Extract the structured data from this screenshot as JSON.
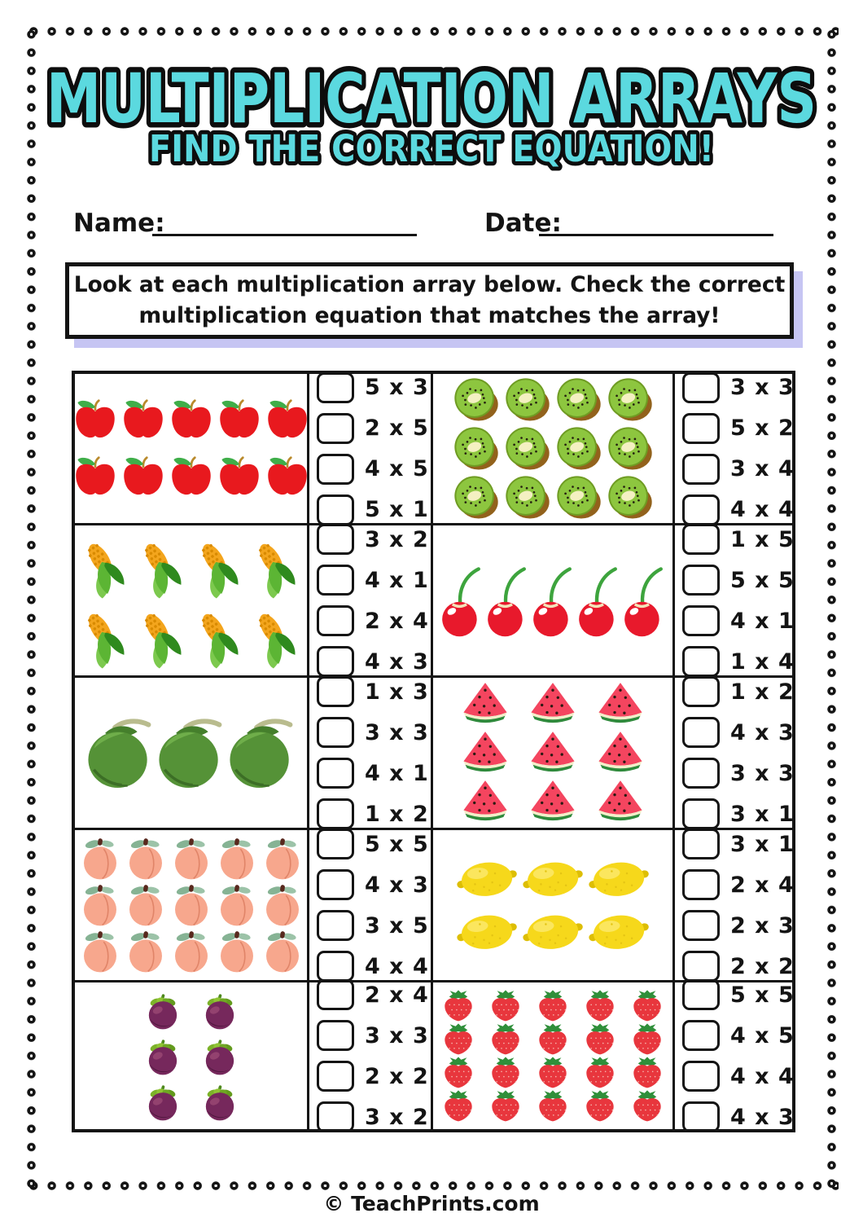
{
  "page": {
    "title": "MULTIPLICATION ARRAYS",
    "subtitle": "FIND THE CORRECT EQUATION!",
    "name_label": "Name:",
    "date_label": "Date:",
    "instructions": {
      "line1": "Look at each multiplication array below. Check the correct",
      "line2": "multiplication equation that matches the array!"
    },
    "footer": "© TeachPrints.com",
    "colors": {
      "title_fill": "#5bd9df",
      "outline": "#0d0d0d",
      "instruction_shadow": "#c6c5f3",
      "table_border": "#141414"
    }
  },
  "problems": [
    {
      "fruit": "apple",
      "rows": 2,
      "cols": 5,
      "options": [
        "5 x 3",
        "2 x 5",
        "4 x 5",
        "5 x 1"
      ]
    },
    {
      "fruit": "kiwi",
      "rows": 3,
      "cols": 4,
      "options": [
        "3 x 3",
        "5 x 2",
        "3 x 4",
        "4 x 4"
      ]
    },
    {
      "fruit": "corn",
      "rows": 2,
      "cols": 4,
      "options": [
        "3 x 2",
        "4 x 1",
        "2 x 4",
        "4 x 3"
      ]
    },
    {
      "fruit": "cherry",
      "rows": 1,
      "cols": 5,
      "options": [
        "1 x 5",
        "5 x 5",
        "4 x 1",
        "1 x 4"
      ]
    },
    {
      "fruit": "coconut",
      "rows": 1,
      "cols": 3,
      "options": [
        "1 x 3",
        "3 x 3",
        "4 x 1",
        "1 x 2"
      ]
    },
    {
      "fruit": "watermelon",
      "rows": 3,
      "cols": 3,
      "options": [
        "1 x 2",
        "4 x 3",
        "3 x 3",
        "3 x 1"
      ]
    },
    {
      "fruit": "peach",
      "rows": 3,
      "cols": 5,
      "options": [
        "5 x 5",
        "4 x 3",
        "3 x 5",
        "4 x 4"
      ]
    },
    {
      "fruit": "lemon",
      "rows": 2,
      "cols": 3,
      "options": [
        "3 x 1",
        "2 x 4",
        "2 x 3",
        "2 x 2"
      ]
    },
    {
      "fruit": "mangosteen",
      "rows": 3,
      "cols": 2,
      "options": [
        "2 x 4",
        "3 x 3",
        "2 x 2",
        "3 x 2"
      ]
    },
    {
      "fruit": "strawberry",
      "rows": 4,
      "cols": 5,
      "options": [
        "5 x 5",
        "4 x 5",
        "4 x 4",
        "4 x 3"
      ]
    }
  ],
  "checkboxes_state": "all unchecked"
}
